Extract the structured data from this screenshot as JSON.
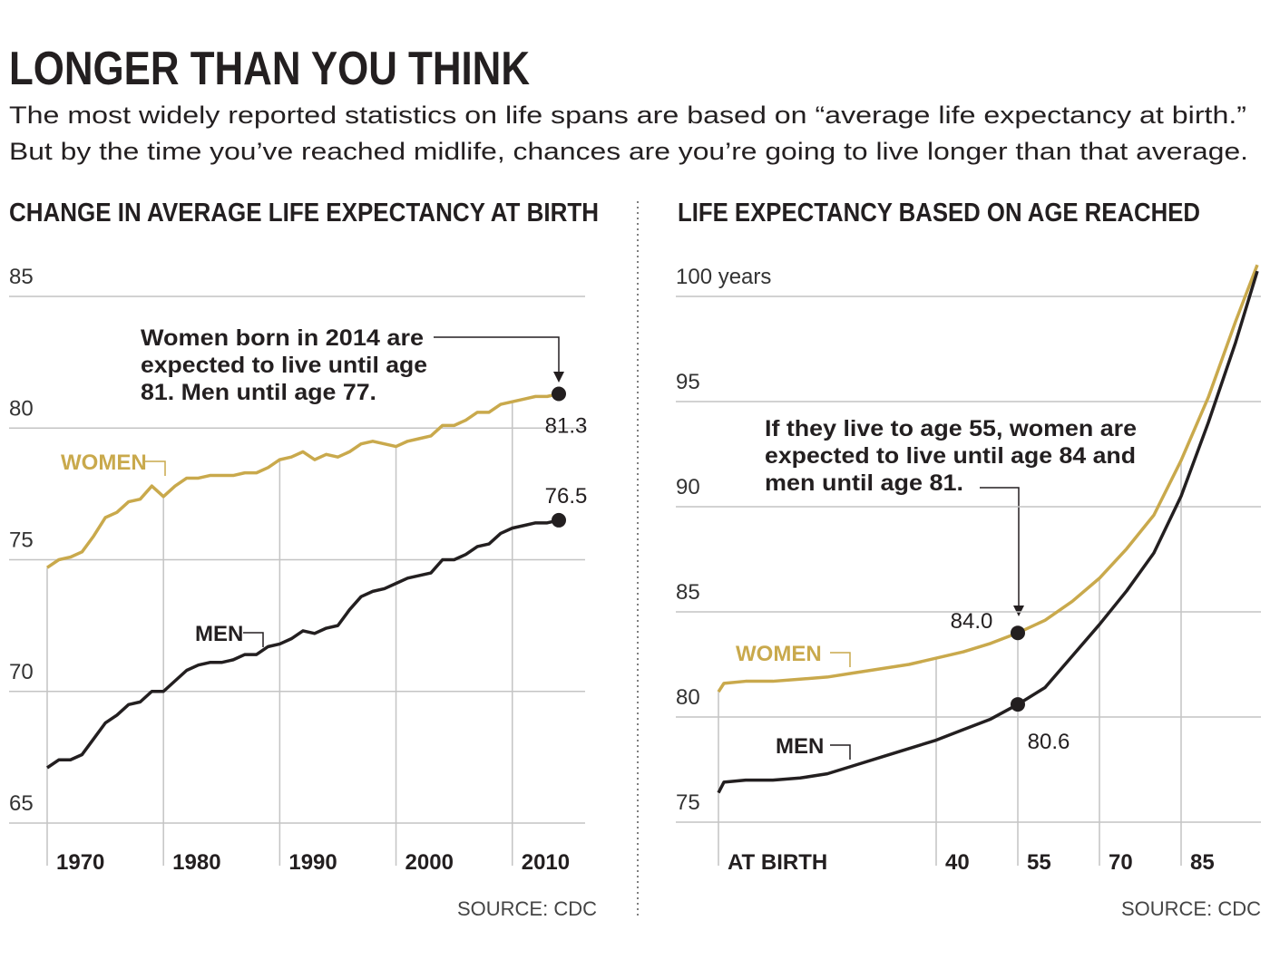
{
  "title": "LONGER THAN YOU THINK",
  "subtitle": [
    "The most widely reported statistics on life spans are based on “average life expectancy at birth.”",
    "But by the time you’ve reached midlife, chances are you’re going to live longer than that average."
  ],
  "chart_data": [
    {
      "type": "line",
      "title": "CHANGE IN AVERAGE LIFE EXPECTANCY AT BIRTH",
      "annotation": [
        "Women born in 2014 are",
        "expected to live until age",
        "81. Men until age 77."
      ],
      "source": "SOURCE: CDC",
      "x": [
        1970,
        1971,
        1972,
        1973,
        1974,
        1975,
        1976,
        1977,
        1978,
        1979,
        1980,
        1981,
        1982,
        1983,
        1984,
        1985,
        1986,
        1987,
        1988,
        1989,
        1990,
        1991,
        1992,
        1993,
        1994,
        1995,
        1996,
        1997,
        1998,
        1999,
        2000,
        2001,
        2002,
        2003,
        2004,
        2005,
        2006,
        2007,
        2008,
        2009,
        2010,
        2011,
        2012,
        2013,
        2014
      ],
      "xlim": [
        1970,
        2014
      ],
      "xticks": [
        1970,
        1980,
        1990,
        2000,
        2010
      ],
      "ylim": [
        65,
        85
      ],
      "yticks": [
        65,
        70,
        75,
        80,
        85
      ],
      "grid": true,
      "series": [
        {
          "name": "WOMEN",
          "color": "#c9a94c",
          "values": [
            74.7,
            75.0,
            75.1,
            75.3,
            75.9,
            76.6,
            76.8,
            77.2,
            77.3,
            77.8,
            77.4,
            77.8,
            78.1,
            78.1,
            78.2,
            78.2,
            78.2,
            78.3,
            78.3,
            78.5,
            78.8,
            78.9,
            79.1,
            78.8,
            79.0,
            78.9,
            79.1,
            79.4,
            79.5,
            79.4,
            79.3,
            79.5,
            79.6,
            79.7,
            80.1,
            80.1,
            80.3,
            80.6,
            80.6,
            80.9,
            81.0,
            81.1,
            81.2,
            81.2,
            81.3
          ],
          "value_labels": [
            null,
            null,
            null,
            null,
            null,
            null,
            null,
            null,
            null,
            null,
            null,
            null,
            null,
            null,
            null,
            null,
            null,
            null,
            null,
            null,
            null,
            null,
            null,
            null,
            null,
            null,
            null,
            null,
            null,
            null,
            null,
            null,
            null,
            null,
            null,
            null,
            null,
            null,
            null,
            null,
            null,
            null,
            null,
            null,
            "81.3"
          ]
        },
        {
          "name": "MEN",
          "color": "#231f20",
          "values": [
            67.1,
            67.4,
            67.4,
            67.6,
            68.2,
            68.8,
            69.1,
            69.5,
            69.6,
            70.0,
            70.0,
            70.4,
            70.8,
            71.0,
            71.1,
            71.1,
            71.2,
            71.4,
            71.4,
            71.7,
            71.8,
            72.0,
            72.3,
            72.2,
            72.4,
            72.5,
            73.1,
            73.6,
            73.8,
            73.9,
            74.1,
            74.3,
            74.4,
            74.5,
            75.0,
            75.0,
            75.2,
            75.5,
            75.6,
            76.0,
            76.2,
            76.3,
            76.4,
            76.4,
            76.5
          ],
          "value_labels": [
            null,
            null,
            null,
            null,
            null,
            null,
            null,
            null,
            null,
            null,
            null,
            null,
            null,
            null,
            null,
            null,
            null,
            null,
            null,
            null,
            null,
            null,
            null,
            null,
            null,
            null,
            null,
            null,
            null,
            null,
            null,
            null,
            null,
            null,
            null,
            null,
            null,
            null,
            null,
            null,
            null,
            null,
            null,
            null,
            "76.5"
          ]
        }
      ]
    },
    {
      "type": "line",
      "title": "LIFE EXPECTANCY BASED ON AGE REACHED",
      "annotation": [
        "If they live to age 55, women are",
        "expected to live until age 84 and",
        "men until age 81."
      ],
      "source": "SOURCE: CDC",
      "x": [
        0,
        1,
        5,
        10,
        15,
        20,
        25,
        30,
        35,
        40,
        45,
        50,
        55,
        60,
        65,
        70,
        75,
        80,
        85,
        90,
        95,
        99
      ],
      "xlim": [
        0,
        99
      ],
      "xticks": [
        {
          "value": 0,
          "label": "AT BIRTH"
        },
        40,
        55,
        70,
        85
      ],
      "ylim": [
        75,
        100
      ],
      "yticks": [
        75,
        80,
        85,
        90,
        95,
        {
          "value": 100,
          "label": "100 years"
        }
      ],
      "grid": true,
      "series": [
        {
          "name": "WOMEN",
          "color": "#c9a94c",
          "values": [
            81.2,
            81.6,
            81.7,
            81.7,
            81.8,
            81.9,
            82.1,
            82.3,
            82.5,
            82.8,
            83.1,
            83.5,
            84.0,
            84.6,
            85.5,
            86.6,
            88.0,
            89.6,
            92.2,
            95.2,
            98.8,
            101.5
          ],
          "value_labels": [
            null,
            null,
            null,
            null,
            null,
            null,
            null,
            null,
            null,
            null,
            null,
            null,
            "84.0",
            null,
            null,
            null,
            null,
            null,
            null,
            null,
            null,
            null
          ]
        },
        {
          "name": "MEN",
          "color": "#231f20",
          "values": [
            76.4,
            76.9,
            77.0,
            77.0,
            77.1,
            77.3,
            77.7,
            78.1,
            78.5,
            78.9,
            79.4,
            79.9,
            80.6,
            81.4,
            82.9,
            84.4,
            86.0,
            87.8,
            90.5,
            94.0,
            97.8,
            101.2
          ],
          "value_labels": [
            null,
            null,
            null,
            null,
            null,
            null,
            null,
            null,
            null,
            null,
            null,
            null,
            "80.6",
            null,
            null,
            null,
            null,
            null,
            null,
            null,
            null,
            null
          ]
        }
      ]
    }
  ]
}
